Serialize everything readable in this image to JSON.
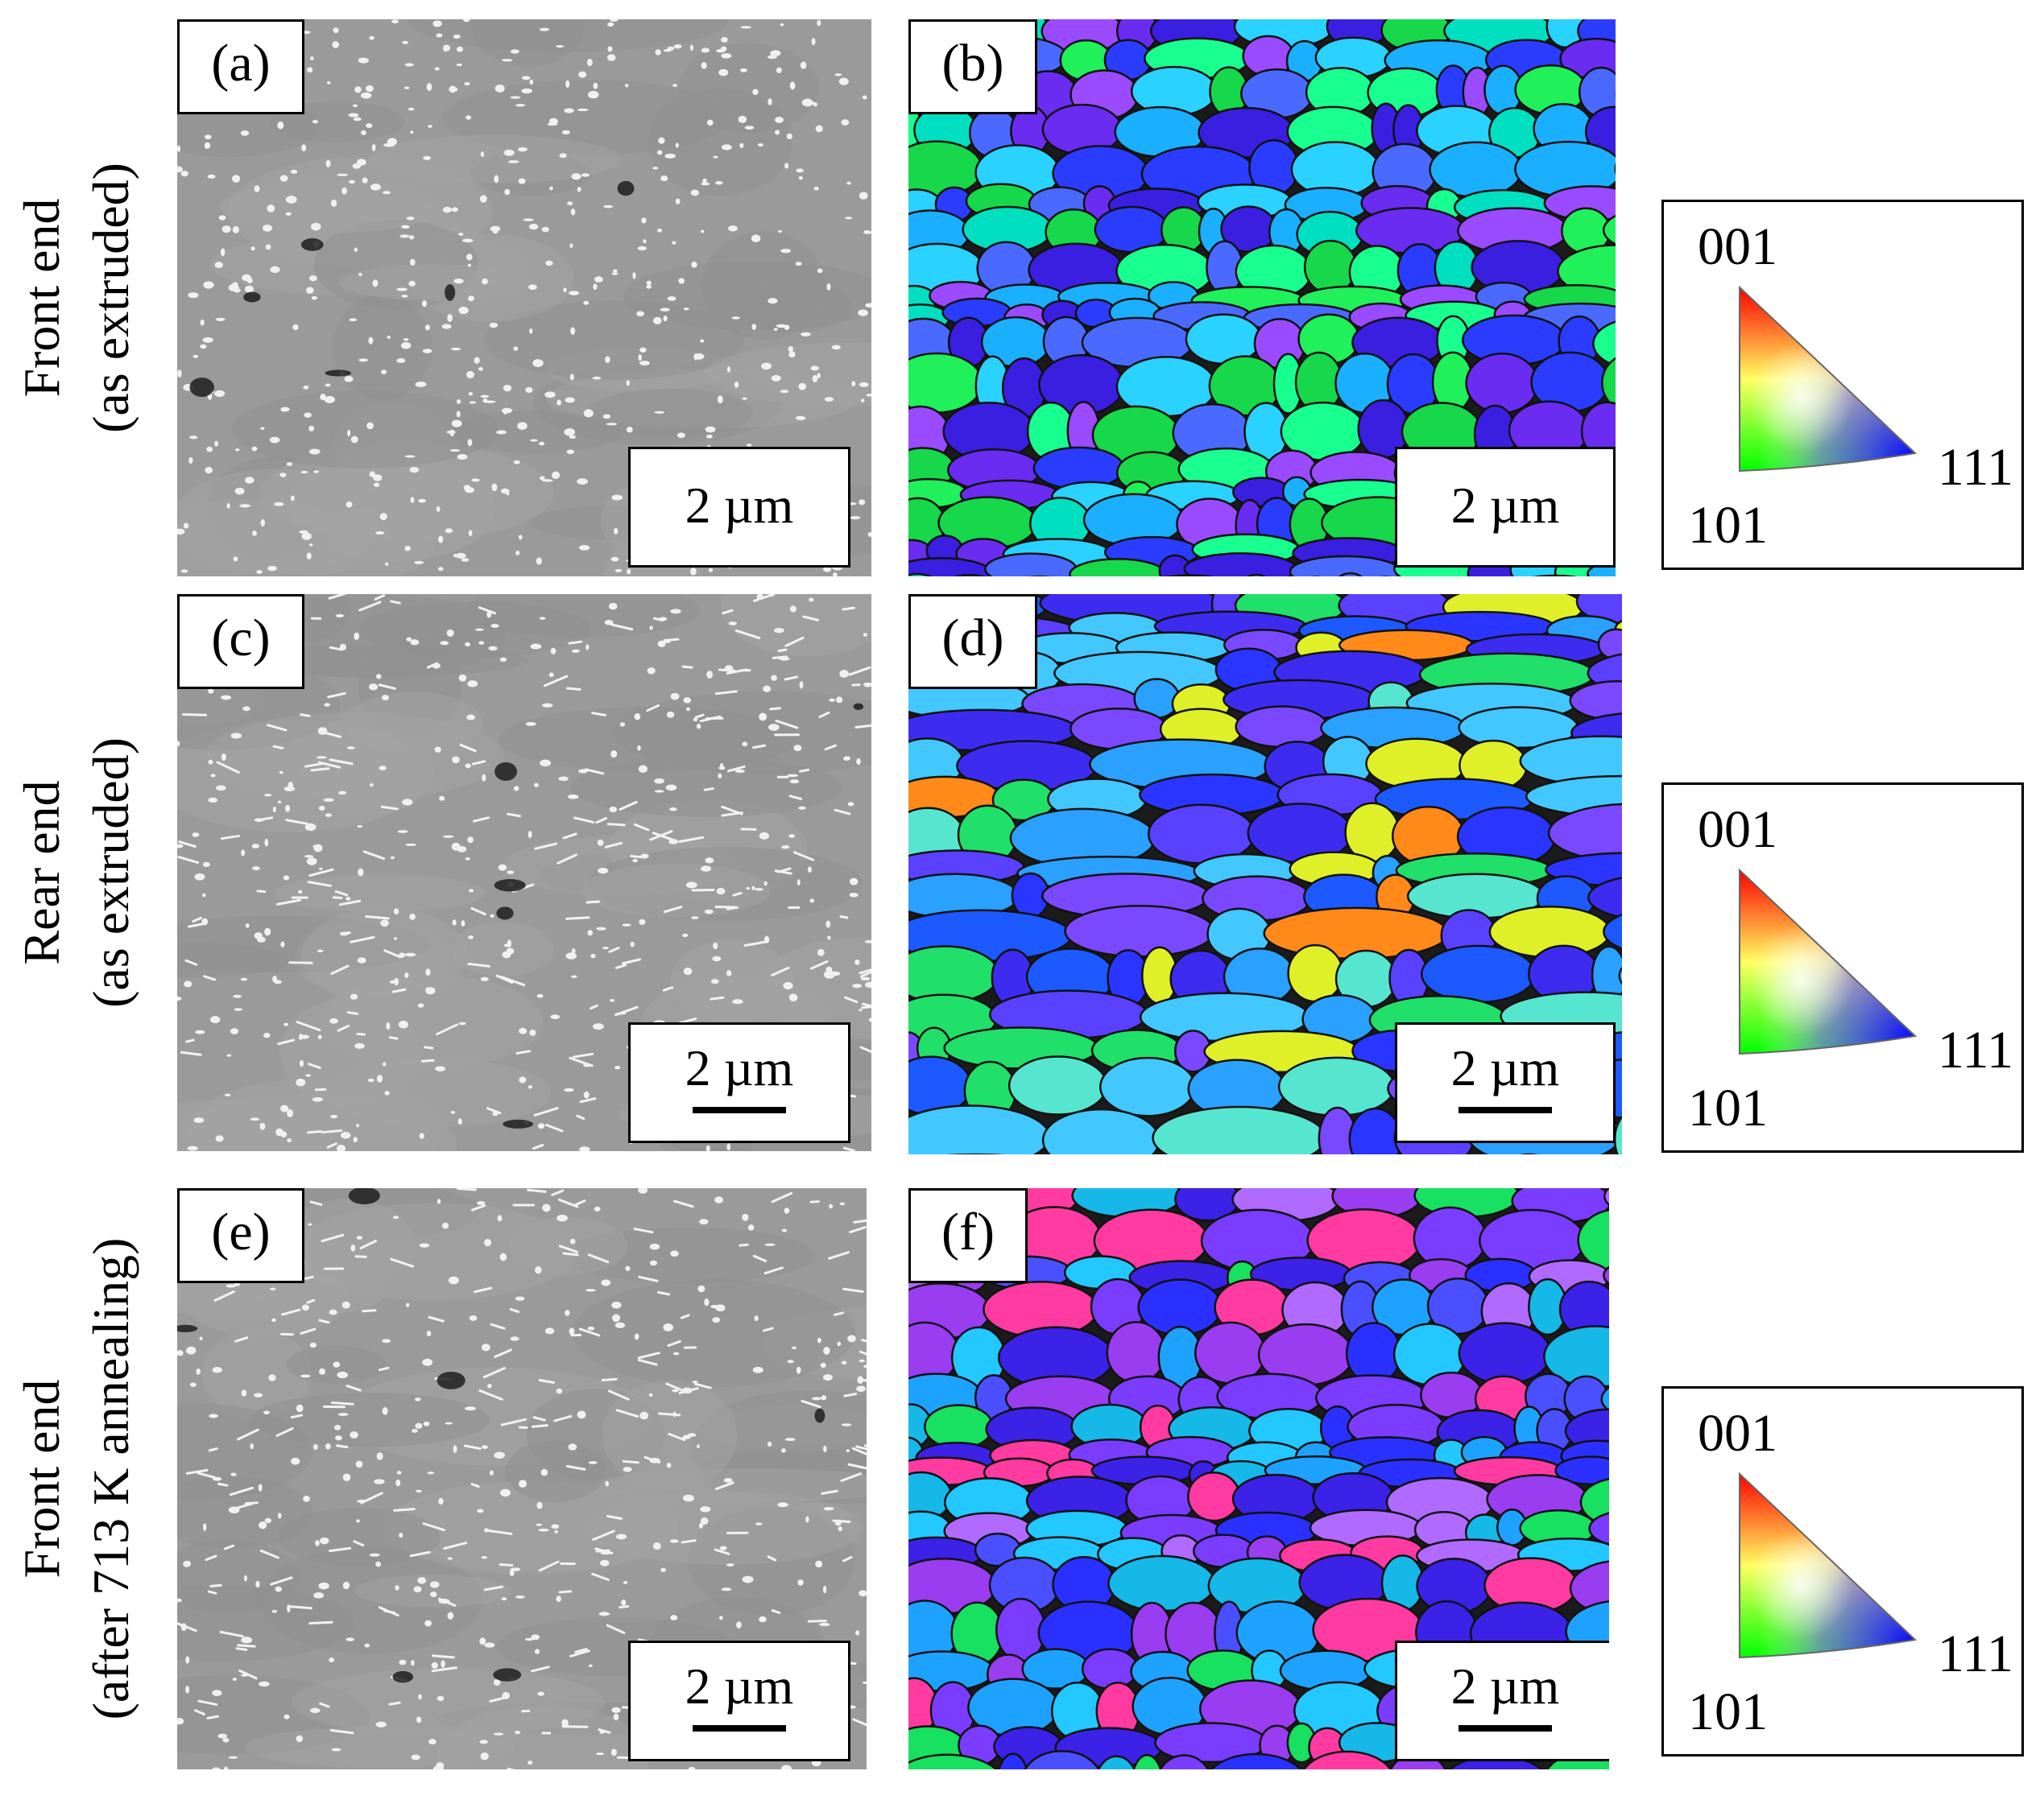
{
  "rows": [
    {
      "label_line1": "Front end",
      "label_line2": "(as extruded)",
      "sem_label": "(a)",
      "ebsd_label": "(b)",
      "sem_scale": "2 µm",
      "ebsd_scale": "2 µm",
      "scale_bar_shown": false
    },
    {
      "label_line1": "Rear end",
      "label_line2": "(as extruded)",
      "sem_label": "(c)",
      "ebsd_label": "(d)",
      "sem_scale": "2 µm",
      "ebsd_scale": "2 µm",
      "scale_bar_shown": true
    },
    {
      "label_line1": "Front end",
      "label_line2": "(after 713 K annealing)",
      "sem_label": "(e)",
      "ebsd_label": "(f)",
      "sem_scale": "2 µm",
      "ebsd_scale": "2 µm",
      "scale_bar_shown": true
    }
  ],
  "ipf_legend": {
    "corner_top": "001",
    "corner_right": "111",
    "corner_left": "101"
  },
  "colors": {
    "sem_matrix": "#9a9a9a",
    "ipf_001": "#ff0000",
    "ipf_101": "#00ff00",
    "ipf_111": "#0000ff"
  }
}
